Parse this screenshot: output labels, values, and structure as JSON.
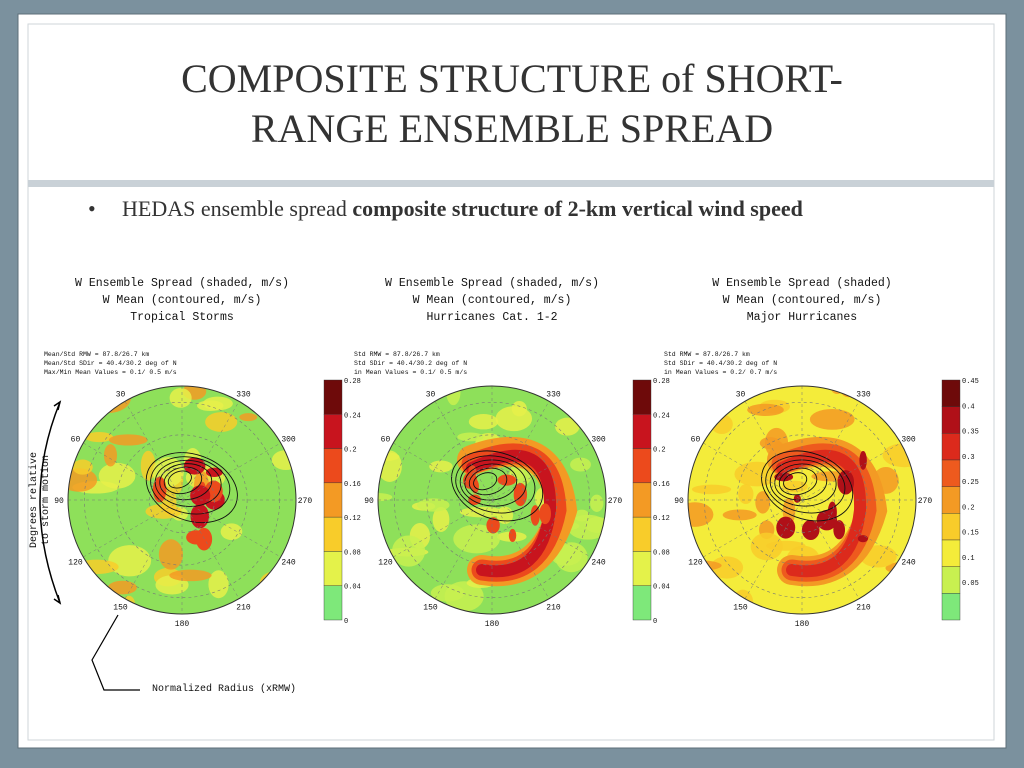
{
  "slide": {
    "title": [
      "COMPOSITE STRUCTURE of SHORT-",
      "RANGE ENSEMBLE SPREAD"
    ],
    "bullet": {
      "text": "HEDAS ensemble spread ",
      "bold": "composite structure of 2-km vertical wind speed"
    },
    "annotations": {
      "y_axis": [
        "Degrees relative",
        "to storm motion"
      ],
      "radius": "Normalized Radius (xRMW)"
    },
    "panels": [
      {
        "caption": [
          "W Ensemble Spread (shaded, m/s)",
          "W Mean (contoured, m/s)",
          "Tropical Storms"
        ],
        "stats": [
          "Mean/Std RMW  = 87.8/26.7 km",
          "Mean/Std SDir = 40.4/30.2 deg of N",
          "Max/Min Mean Values =  0.1/ 0.5 m/s"
        ],
        "colorbar_ticks": [
          0.28,
          0.24,
          0.2,
          0.16,
          0.12,
          0.08,
          0.04,
          0
        ],
        "colorbar_colors": [
          "#6e0a0a",
          "#c8141e",
          "#ec4a1c",
          "#f39a24",
          "#f8cc2a",
          "#e4f24a",
          "#7ee87a"
        ],
        "angle_labels": [
          30,
          330,
          60,
          300,
          90,
          270,
          120,
          240,
          150,
          210,
          180
        ]
      },
      {
        "caption": [
          "W Ensemble Spread (shaded, m/s)",
          "W Mean (contoured, m/s)",
          "Hurricanes Cat. 1-2"
        ],
        "stats": [
          "Std RMW  = 87.8/26.7 km",
          "Std SDir = 40.4/30.2 deg of N",
          "in Mean Values =  0.1/ 0.5 m/s"
        ],
        "colorbar_ticks": [
          0.28,
          0.24,
          0.2,
          0.16,
          0.12,
          0.08,
          0.04,
          0
        ],
        "colorbar_colors": [
          "#6e0a0a",
          "#c8141e",
          "#ec4a1c",
          "#f39a24",
          "#f8cc2a",
          "#e4f24a",
          "#7ee87a"
        ],
        "angle_labels": [
          30,
          330,
          60,
          300,
          90,
          270,
          120,
          240,
          150,
          210,
          180
        ]
      },
      {
        "caption": [
          "W Ensemble Spread (shaded)",
          "W Mean (contoured, m/s)",
          "Major Hurricanes"
        ],
        "stats": [
          "Std RMW  = 87.8/26.7 km",
          "Std SDir = 40.4/30.2 deg of N",
          "in Mean Values =  0.2/ 0.7 m/s"
        ],
        "colorbar_ticks": [
          0.45,
          0.4,
          0.35,
          0.3,
          0.25,
          0.2,
          0.15,
          0.1,
          0.05
        ],
        "colorbar_colors": [
          "#6e0a0a",
          "#b01018",
          "#dc2a1c",
          "#ee5a1e",
          "#f39a24",
          "#f8cc2a",
          "#f4ec3a",
          "#c8f050",
          "#7ee87a"
        ],
        "angle_labels": [
          30,
          330,
          60,
          300,
          90,
          270,
          120,
          240,
          150,
          210,
          180
        ]
      }
    ]
  }
}
